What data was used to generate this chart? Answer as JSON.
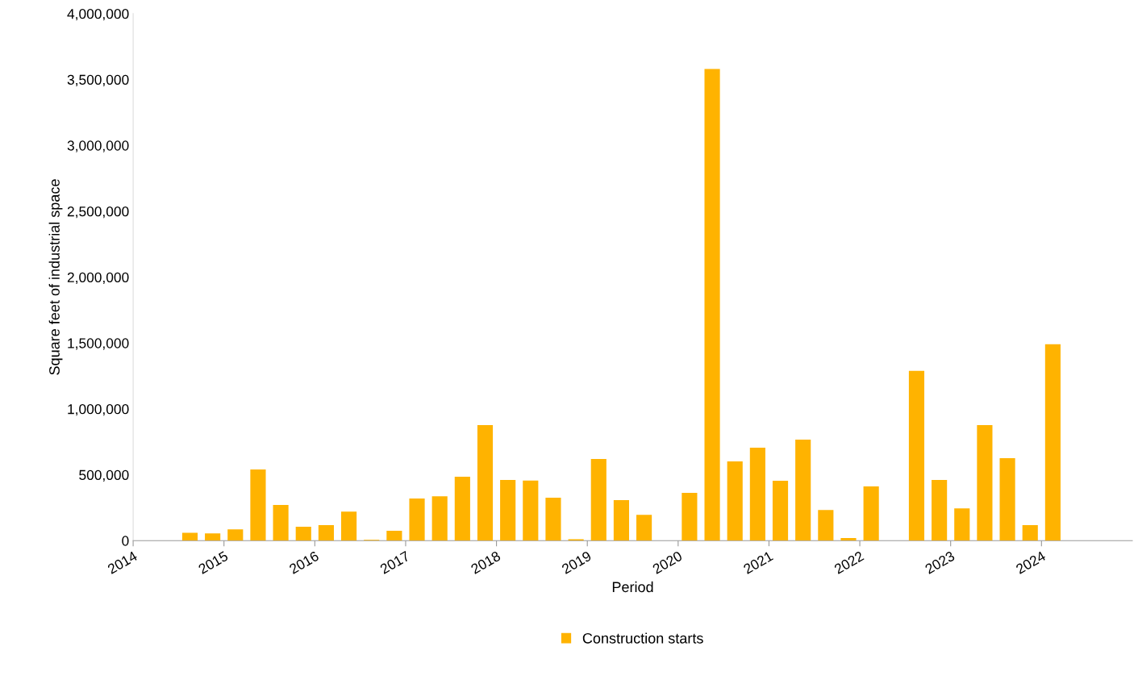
{
  "chart_data": {
    "type": "bar",
    "xlabel": "Period",
    "ylabel": "Square feet of industrial space",
    "x": [
      2014.625,
      2014.875,
      2015.125,
      2015.375,
      2015.625,
      2015.875,
      2016.125,
      2016.375,
      2016.625,
      2016.875,
      2017.125,
      2017.375,
      2017.625,
      2017.875,
      2018.125,
      2018.375,
      2018.625,
      2018.875,
      2019.125,
      2019.375,
      2019.625,
      2019.875,
      2020.125,
      2020.375,
      2020.625,
      2020.875,
      2021.125,
      2021.375,
      2021.625,
      2021.875,
      2022.125,
      2022.375,
      2022.625,
      2022.875,
      2023.125,
      2023.375,
      2023.625,
      2023.875,
      2024.125
    ],
    "series": [
      {
        "name": "Construction starts",
        "color": "#ffb300",
        "values": [
          60000,
          55000,
          85000,
          540000,
          270000,
          105000,
          117000,
          220000,
          5000,
          75000,
          320000,
          337000,
          485000,
          877000,
          460000,
          455000,
          325000,
          10000,
          620000,
          307000,
          196000,
          0,
          362000,
          3580000,
          601000,
          705000,
          454000,
          767000,
          233000,
          20000,
          411000,
          0,
          1288000,
          460000,
          245000,
          877000,
          626000,
          117000,
          1490000
        ]
      }
    ],
    "xlim": [
      2014,
      2025
    ],
    "xticks": [
      2014,
      2015,
      2016,
      2017,
      2018,
      2019,
      2020,
      2021,
      2022,
      2023,
      2024
    ],
    "ylim": [
      0,
      4000000
    ],
    "yticks": [
      {
        "value": 0,
        "label": "0"
      },
      {
        "value": 500000,
        "label": "500,000"
      },
      {
        "value": 1000000,
        "label": "1,000,000"
      },
      {
        "value": 1500000,
        "label": "1,500,000"
      },
      {
        "value": 2000000,
        "label": "2,000,000"
      },
      {
        "value": 2500000,
        "label": "2,500,000"
      },
      {
        "value": 3000000,
        "label": "3,000,000"
      },
      {
        "value": 3500000,
        "label": "3,500,000"
      },
      {
        "value": 4000000,
        "label": "4,000,000"
      }
    ],
    "grid": false,
    "legend": "bottom"
  }
}
